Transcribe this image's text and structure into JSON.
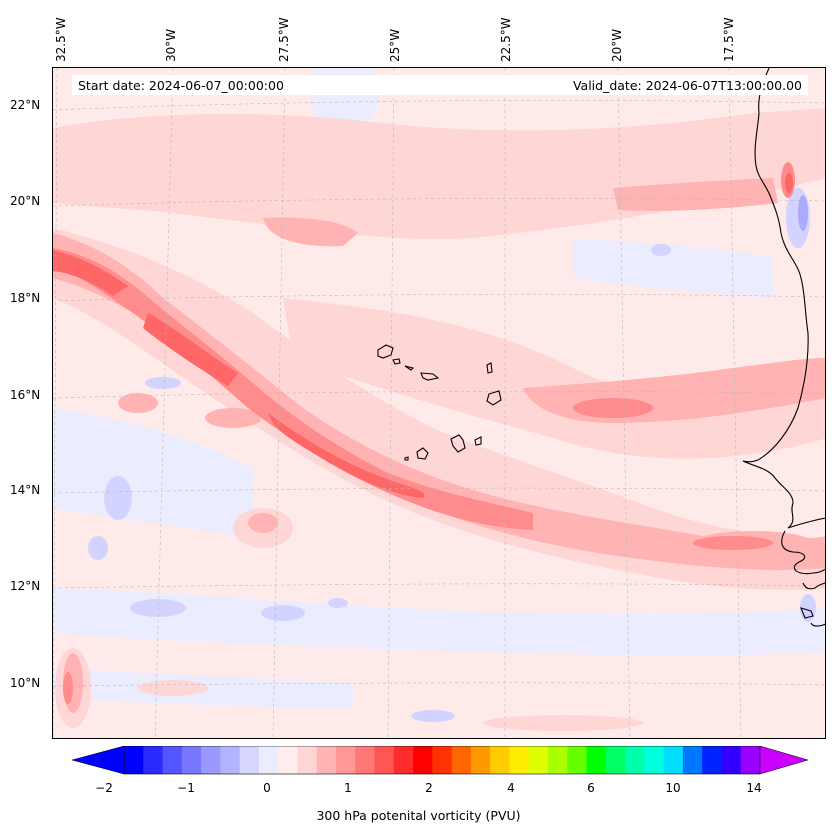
{
  "map": {
    "title_left": "Start date: 2024-06-07_00:00:00",
    "title_right": "Valid_date: 2024-06-07T13:00:00.00",
    "longitude_labels": [
      "32.5°W",
      "30°W",
      "27.5°W",
      "25°W",
      "22.5°W",
      "20°W",
      "17.5°W"
    ],
    "latitude_labels": [
      "22°N",
      "20°N",
      "18°N",
      "16°N",
      "14°N",
      "12°N",
      "10°N"
    ],
    "extent": {
      "lon_min": -32.7,
      "lon_max": -15.7,
      "lat_min": 8.9,
      "lat_max": 22.8
    },
    "features": [
      "Cape Verde islands",
      "West African coastline (Mauritania, Senegal, Gambia, Guinea-Bissau)"
    ]
  },
  "colorbar": {
    "label": "300 hPa potenital vorticity (PVU)",
    "tick_labels": [
      "−2",
      "−1",
      "0",
      "1",
      "2",
      "4",
      "6",
      "10",
      "14"
    ],
    "colors": [
      "#0000ff",
      "#2a2aff",
      "#5555ff",
      "#7777ff",
      "#9999ff",
      "#b3b3ff",
      "#d6d6ff",
      "#ececff",
      "#ffecec",
      "#ffd6d6",
      "#ffb3b3",
      "#ff9999",
      "#ff7777",
      "#ff5555",
      "#ff2a2a",
      "#ff0000",
      "#ff3300",
      "#ff6600",
      "#ff9900",
      "#ffcc00",
      "#ffee00",
      "#ddff00",
      "#aaff00",
      "#66ff00",
      "#00ff00",
      "#00ff66",
      "#00ffaa",
      "#00ffdd",
      "#00ddff",
      "#0077ff",
      "#0022ff",
      "#3300ff",
      "#9900ff"
    ],
    "min_color": "#0000ff",
    "max_color": "#cc00ff"
  },
  "chart_data": {
    "type": "heatmap",
    "title": "300 hPa potential vorticity",
    "variable": "300 hPa potenital vorticity (PVU)",
    "levels": [
      -2,
      -1,
      0,
      1,
      2,
      4,
      6,
      10,
      14
    ],
    "features": [
      {
        "name": "main PV streamer",
        "from": [
          -32.5,
          18.8
        ],
        "to": [
          -16,
          12.9
        ],
        "max_pvu": 1.8
      },
      {
        "name": "secondary band",
        "from": [
          -28,
          20.5
        ],
        "to": [
          -16,
          15.2
        ],
        "max_pvu": 1.2
      },
      {
        "name": "low-PV band",
        "from": [
          -32,
          11.5
        ],
        "to": [
          -16,
          10.8
        ],
        "min_pvu": -0.6
      }
    ]
  }
}
